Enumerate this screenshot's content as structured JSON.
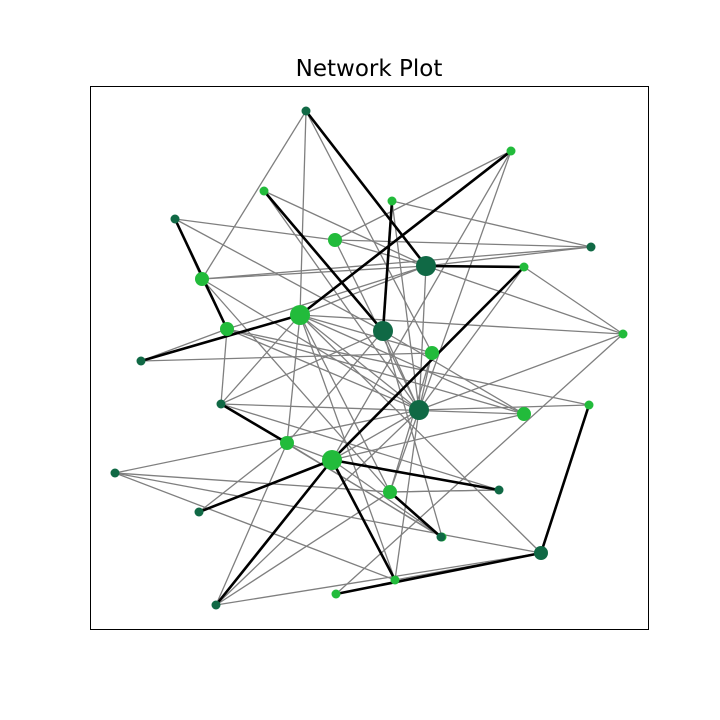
{
  "title": "Network Plot",
  "colors": {
    "light": "#22bb3b",
    "dark": "#106945",
    "thin_edge": "#7f7f7f",
    "thick_edge": "#000000"
  },
  "nodes": [
    {
      "id": "n0",
      "c": "dark",
      "s": 1
    },
    {
      "id": "n1",
      "c": "light",
      "s": 1
    },
    {
      "id": "n2",
      "c": "light",
      "s": 1
    },
    {
      "id": "n3",
      "c": "light",
      "s": 1
    },
    {
      "id": "n4",
      "c": "dark",
      "s": 1
    },
    {
      "id": "n5",
      "c": "dark",
      "s": 1
    },
    {
      "id": "n6",
      "c": "light",
      "s": 2
    },
    {
      "id": "n7",
      "c": "dark",
      "s": 3
    },
    {
      "id": "n8",
      "c": "light",
      "s": 2
    },
    {
      "id": "n9",
      "c": "light",
      "s": 1
    },
    {
      "id": "n10",
      "c": "light",
      "s": 2
    },
    {
      "id": "n11",
      "c": "light",
      "s": 3
    },
    {
      "id": "n12",
      "c": "dark",
      "s": 3
    },
    {
      "id": "n13",
      "c": "dark",
      "s": 1
    },
    {
      "id": "n14",
      "c": "light",
      "s": 2
    },
    {
      "id": "n15",
      "c": "light",
      "s": 1
    },
    {
      "id": "n16",
      "c": "dark",
      "s": 3
    },
    {
      "id": "n17",
      "c": "light",
      "s": 2
    },
    {
      "id": "n18",
      "c": "light",
      "s": 1
    },
    {
      "id": "n19",
      "c": "dark",
      "s": 1
    },
    {
      "id": "n20",
      "c": "light",
      "s": 2
    },
    {
      "id": "n21",
      "c": "light",
      "s": 3
    },
    {
      "id": "n22",
      "c": "light",
      "s": 2
    },
    {
      "id": "n23",
      "c": "dark",
      "s": 1
    },
    {
      "id": "n24",
      "c": "dark",
      "s": 1
    },
    {
      "id": "n25",
      "c": "dark",
      "s": 1
    },
    {
      "id": "n26",
      "c": "light",
      "s": 1
    },
    {
      "id": "n27",
      "c": "dark",
      "s": 2
    },
    {
      "id": "n28",
      "c": "light",
      "s": 1
    },
    {
      "id": "n29",
      "c": "dark",
      "s": 1
    },
    {
      "id": "n30",
      "c": "light",
      "s": 1
    },
    {
      "id": "n31",
      "c": "dark",
      "s": 1
    }
  ],
  "thick_edges": [
    [
      "n0",
      "n7"
    ],
    [
      "n1",
      "n11"
    ],
    [
      "n4",
      "n10"
    ],
    [
      "n13",
      "n11"
    ],
    [
      "n12",
      "n2"
    ],
    [
      "n19",
      "n20"
    ],
    [
      "n9",
      "n21"
    ],
    [
      "n18",
      "n27"
    ],
    [
      "n21",
      "n29"
    ],
    [
      "n27",
      "n30"
    ],
    [
      "n21",
      "n28"
    ],
    [
      "n21",
      "n25"
    ],
    [
      "n7",
      "n9"
    ],
    [
      "n22",
      "n31"
    ],
    [
      "n21",
      "n24"
    ],
    [
      "n12",
      "n3"
    ]
  ],
  "thin_edges": [
    [
      "n0",
      "n8"
    ],
    [
      "n0",
      "n14"
    ],
    [
      "n0",
      "n11"
    ],
    [
      "n1",
      "n6"
    ],
    [
      "n1",
      "n21"
    ],
    [
      "n1",
      "n22"
    ],
    [
      "n2",
      "n16"
    ],
    [
      "n2",
      "n7"
    ],
    [
      "n3",
      "n5"
    ],
    [
      "n3",
      "n16"
    ],
    [
      "n4",
      "n8"
    ],
    [
      "n4",
      "n12"
    ],
    [
      "n4",
      "n6"
    ],
    [
      "n5",
      "n8"
    ],
    [
      "n5",
      "n6"
    ],
    [
      "n5",
      "n7"
    ],
    [
      "n7",
      "n6"
    ],
    [
      "n7",
      "n8"
    ],
    [
      "n7",
      "n10"
    ],
    [
      "n7",
      "n11"
    ],
    [
      "n7",
      "n16"
    ],
    [
      "n7",
      "n15"
    ],
    [
      "n8",
      "n16"
    ],
    [
      "n8",
      "n10"
    ],
    [
      "n8",
      "n22"
    ],
    [
      "n9",
      "n16"
    ],
    [
      "n9",
      "n15"
    ],
    [
      "n10",
      "n16"
    ],
    [
      "n10",
      "n19"
    ],
    [
      "n10",
      "n17"
    ],
    [
      "n11",
      "n14"
    ],
    [
      "n11",
      "n15"
    ],
    [
      "n11",
      "n16"
    ],
    [
      "n11",
      "n19"
    ],
    [
      "n11",
      "n20"
    ],
    [
      "n11",
      "n22"
    ],
    [
      "n11",
      "n27"
    ],
    [
      "n11",
      "n28"
    ],
    [
      "n11",
      "n17"
    ],
    [
      "n12",
      "n16"
    ],
    [
      "n12",
      "n17"
    ],
    [
      "n12",
      "n19"
    ],
    [
      "n12",
      "n20"
    ],
    [
      "n12",
      "n26"
    ],
    [
      "n13",
      "n10"
    ],
    [
      "n13",
      "n14"
    ],
    [
      "n14",
      "n16"
    ],
    [
      "n14",
      "n22"
    ],
    [
      "n15",
      "n16"
    ],
    [
      "n16",
      "n29"
    ],
    [
      "n16",
      "n28"
    ],
    [
      "n16",
      "n21"
    ],
    [
      "n17",
      "n19"
    ],
    [
      "n18",
      "n10"
    ],
    [
      "n18",
      "n16"
    ],
    [
      "n19",
      "n24"
    ],
    [
      "n19",
      "n26"
    ],
    [
      "n20",
      "n21"
    ],
    [
      "n20",
      "n25"
    ],
    [
      "n20",
      "n31"
    ],
    [
      "n20",
      "n29"
    ],
    [
      "n21",
      "n26"
    ],
    [
      "n21",
      "n17"
    ],
    [
      "n22",
      "n24"
    ],
    [
      "n22",
      "n29"
    ],
    [
      "n23",
      "n16"
    ],
    [
      "n23",
      "n22"
    ],
    [
      "n23",
      "n27"
    ],
    [
      "n23",
      "n28"
    ],
    [
      "n24",
      "n22"
    ],
    [
      "n26",
      "n31"
    ],
    [
      "n27",
      "n29"
    ],
    [
      "n27",
      "n28"
    ],
    [
      "n27",
      "n30"
    ],
    [
      "n15",
      "n30"
    ],
    [
      "n6",
      "n16"
    ]
  ]
}
